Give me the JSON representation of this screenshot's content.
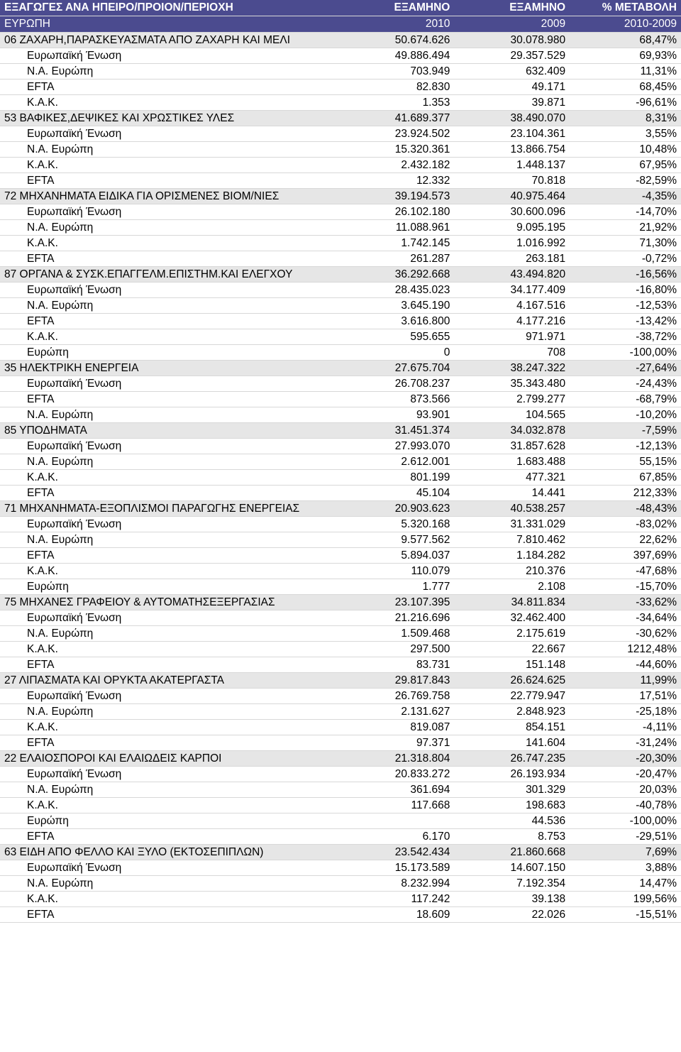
{
  "header": {
    "title_left": "ΕΞΑΓΩΓΕΣ ΑΝΑ ΗΠΕΙΡΟ/ΠΡΟΙΟΝ/ΠΕΡΙΟΧΗ",
    "col1": "ΕΞΑΜΗΝΟ",
    "col2": "ΕΞΑΜΗΝΟ",
    "col3": "% ΜΕΤΑΒΟΛΗ",
    "sub_left": "ΕΥΡΩΠΗ",
    "sub_col1": "2010",
    "sub_col2": "2009",
    "sub_col3": "2010-2009"
  },
  "rows": [
    {
      "type": "cat",
      "label": "06  ΖΑΧΑΡΗ,ΠΑΡΑΣΚΕΥΑΣΜΑΤΑ ΑΠΟ ΖΑΧΑΡΗ ΚΑΙ ΜΕΛΙ",
      "v1": "50.674.626",
      "v2": "30.078.980",
      "pct": "68,47%"
    },
    {
      "type": "sub",
      "label": "Ευρωπαϊκή Ένωση",
      "v1": "49.886.494",
      "v2": "29.357.529",
      "pct": "69,93%"
    },
    {
      "type": "sub",
      "label": "Ν.Α. Ευρώπη",
      "v1": "703.949",
      "v2": "632.409",
      "pct": "11,31%"
    },
    {
      "type": "sub",
      "label": "EFTA",
      "v1": "82.830",
      "v2": "49.171",
      "pct": "68,45%"
    },
    {
      "type": "sub",
      "label": "Κ.Α.Κ.",
      "v1": "1.353",
      "v2": "39.871",
      "pct": "-96,61%"
    },
    {
      "type": "cat",
      "label": "53  ΒΑΦΙΚΕΣ,ΔΕΨΙΚΕΣ ΚΑΙ ΧΡΩΣΤΙΚΕΣ ΥΛΕΣ",
      "v1": "41.689.377",
      "v2": "38.490.070",
      "pct": "8,31%"
    },
    {
      "type": "sub",
      "label": "Ευρωπαϊκή Ένωση",
      "v1": "23.924.502",
      "v2": "23.104.361",
      "pct": "3,55%"
    },
    {
      "type": "sub",
      "label": "Ν.Α. Ευρώπη",
      "v1": "15.320.361",
      "v2": "13.866.754",
      "pct": "10,48%"
    },
    {
      "type": "sub",
      "label": "Κ.Α.Κ.",
      "v1": "2.432.182",
      "v2": "1.448.137",
      "pct": "67,95%"
    },
    {
      "type": "sub",
      "label": "EFTA",
      "v1": "12.332",
      "v2": "70.818",
      "pct": "-82,59%"
    },
    {
      "type": "cat",
      "label": "72  ΜΗΧΑΝΗΜΑΤΑ ΕΙΔΙΚΑ ΓΙΑ ΟΡΙΣΜΕΝΕΣ ΒΙΟΜ/ΝΙΕΣ",
      "v1": "39.194.573",
      "v2": "40.975.464",
      "pct": "-4,35%"
    },
    {
      "type": "sub",
      "label": "Ευρωπαϊκή Ένωση",
      "v1": "26.102.180",
      "v2": "30.600.096",
      "pct": "-14,70%"
    },
    {
      "type": "sub",
      "label": "Ν.Α. Ευρώπη",
      "v1": "11.088.961",
      "v2": "9.095.195",
      "pct": "21,92%"
    },
    {
      "type": "sub",
      "label": "Κ.Α.Κ.",
      "v1": "1.742.145",
      "v2": "1.016.992",
      "pct": "71,30%"
    },
    {
      "type": "sub",
      "label": "EFTA",
      "v1": "261.287",
      "v2": "263.181",
      "pct": "-0,72%"
    },
    {
      "type": "cat",
      "label": "87  ΟΡΓΑΝΑ & ΣΥΣΚ.ΕΠΑΓΓΕΛΜ.ΕΠΙΣΤΗΜ.ΚΑΙ ΕΛΕΓΧΟΥ",
      "v1": "36.292.668",
      "v2": "43.494.820",
      "pct": "-16,56%"
    },
    {
      "type": "sub",
      "label": "Ευρωπαϊκή Ένωση",
      "v1": "28.435.023",
      "v2": "34.177.409",
      "pct": "-16,80%"
    },
    {
      "type": "sub",
      "label": "Ν.Α. Ευρώπη",
      "v1": "3.645.190",
      "v2": "4.167.516",
      "pct": "-12,53%"
    },
    {
      "type": "sub",
      "label": "EFTA",
      "v1": "3.616.800",
      "v2": "4.177.216",
      "pct": "-13,42%"
    },
    {
      "type": "sub",
      "label": "Κ.Α.Κ.",
      "v1": "595.655",
      "v2": "971.971",
      "pct": "-38,72%"
    },
    {
      "type": "sub",
      "label": "Ευρώπη",
      "v1": "0",
      "v2": "708",
      "pct": "-100,00%"
    },
    {
      "type": "cat",
      "label": "35  ΗΛΕΚΤΡΙΚΗ ΕΝΕΡΓΕΙΑ",
      "v1": "27.675.704",
      "v2": "38.247.322",
      "pct": "-27,64%"
    },
    {
      "type": "sub",
      "label": "Ευρωπαϊκή Ένωση",
      "v1": "26.708.237",
      "v2": "35.343.480",
      "pct": "-24,43%"
    },
    {
      "type": "sub",
      "label": "EFTA",
      "v1": "873.566",
      "v2": "2.799.277",
      "pct": "-68,79%"
    },
    {
      "type": "sub",
      "label": "Ν.Α. Ευρώπη",
      "v1": "93.901",
      "v2": "104.565",
      "pct": "-10,20%"
    },
    {
      "type": "cat",
      "label": "85  ΥΠΟΔΗΜΑΤΑ",
      "v1": "31.451.374",
      "v2": "34.032.878",
      "pct": "-7,59%"
    },
    {
      "type": "sub",
      "label": "Ευρωπαϊκή Ένωση",
      "v1": "27.993.070",
      "v2": "31.857.628",
      "pct": "-12,13%"
    },
    {
      "type": "sub",
      "label": "Ν.Α. Ευρώπη",
      "v1": "2.612.001",
      "v2": "1.683.488",
      "pct": "55,15%"
    },
    {
      "type": "sub",
      "label": "Κ.Α.Κ.",
      "v1": "801.199",
      "v2": "477.321",
      "pct": "67,85%"
    },
    {
      "type": "sub",
      "label": "EFTA",
      "v1": "45.104",
      "v2": "14.441",
      "pct": "212,33%"
    },
    {
      "type": "cat",
      "label": "71  ΜΗΧΑΝΗΜΑΤΑ-ΕΞΟΠΛΙΣΜΟΙ ΠΑΡΑΓΩΓΗΣ ΕΝΕΡΓΕΙΑΣ",
      "v1": "20.903.623",
      "v2": "40.538.257",
      "pct": "-48,43%"
    },
    {
      "type": "sub",
      "label": "Ευρωπαϊκή Ένωση",
      "v1": "5.320.168",
      "v2": "31.331.029",
      "pct": "-83,02%"
    },
    {
      "type": "sub",
      "label": "Ν.Α. Ευρώπη",
      "v1": "9.577.562",
      "v2": "7.810.462",
      "pct": "22,62%"
    },
    {
      "type": "sub",
      "label": "EFTA",
      "v1": "5.894.037",
      "v2": "1.184.282",
      "pct": "397,69%"
    },
    {
      "type": "sub",
      "label": "Κ.Α.Κ.",
      "v1": "110.079",
      "v2": "210.376",
      "pct": "-47,68%"
    },
    {
      "type": "sub",
      "label": "Ευρώπη",
      "v1": "1.777",
      "v2": "2.108",
      "pct": "-15,70%"
    },
    {
      "type": "cat",
      "label": "75  ΜΗΧΑΝΕΣ ΓΡΑΦΕΙΟΥ & ΑΥΤΟΜΑΤΗΣΕΞΕΡΓΑΣΙΑΣ",
      "v1": "23.107.395",
      "v2": "34.811.834",
      "pct": "-33,62%"
    },
    {
      "type": "sub",
      "label": "Ευρωπαϊκή Ένωση",
      "v1": "21.216.696",
      "v2": "32.462.400",
      "pct": "-34,64%"
    },
    {
      "type": "sub",
      "label": "Ν.Α. Ευρώπη",
      "v1": "1.509.468",
      "v2": "2.175.619",
      "pct": "-30,62%"
    },
    {
      "type": "sub",
      "label": "Κ.Α.Κ.",
      "v1": "297.500",
      "v2": "22.667",
      "pct": "1212,48%"
    },
    {
      "type": "sub",
      "label": "EFTA",
      "v1": "83.731",
      "v2": "151.148",
      "pct": "-44,60%"
    },
    {
      "type": "cat",
      "label": "27  ΛΙΠΑΣΜΑΤΑ ΚΑΙ ΟΡΥΚΤΑ ΑΚΑΤΕΡΓΑΣΤΑ",
      "v1": "29.817.843",
      "v2": "26.624.625",
      "pct": "11,99%"
    },
    {
      "type": "sub",
      "label": "Ευρωπαϊκή Ένωση",
      "v1": "26.769.758",
      "v2": "22.779.947",
      "pct": "17,51%"
    },
    {
      "type": "sub",
      "label": "Ν.Α. Ευρώπη",
      "v1": "2.131.627",
      "v2": "2.848.923",
      "pct": "-25,18%"
    },
    {
      "type": "sub",
      "label": "Κ.Α.Κ.",
      "v1": "819.087",
      "v2": "854.151",
      "pct": "-4,11%"
    },
    {
      "type": "sub",
      "label": "EFTA",
      "v1": "97.371",
      "v2": "141.604",
      "pct": "-31,24%"
    },
    {
      "type": "cat",
      "label": "22  ΕΛΑΙΟΣΠΟΡΟΙ ΚΑΙ ΕΛΑΙΩΔΕΙΣ ΚΑΡΠΟΙ",
      "v1": "21.318.804",
      "v2": "26.747.235",
      "pct": "-20,30%"
    },
    {
      "type": "sub",
      "label": "Ευρωπαϊκή Ένωση",
      "v1": "20.833.272",
      "v2": "26.193.934",
      "pct": "-20,47%"
    },
    {
      "type": "sub",
      "label": "Ν.Α. Ευρώπη",
      "v1": "361.694",
      "v2": "301.329",
      "pct": "20,03%"
    },
    {
      "type": "sub",
      "label": "Κ.Α.Κ.",
      "v1": "117.668",
      "v2": "198.683",
      "pct": "-40,78%"
    },
    {
      "type": "sub",
      "label": "Ευρώπη",
      "v1": "",
      "v2": "44.536",
      "pct": "-100,00%"
    },
    {
      "type": "sub",
      "label": "EFTA",
      "v1": "6.170",
      "v2": "8.753",
      "pct": "-29,51%"
    },
    {
      "type": "cat",
      "label": "63  ΕΙΔΗ ΑΠΟ ΦΕΛΛΟ ΚΑΙ ΞΥΛΟ (ΕΚΤΟΣΕΠΙΠΛΩΝ)",
      "v1": "23.542.434",
      "v2": "21.860.668",
      "pct": "7,69%"
    },
    {
      "type": "sub",
      "label": "Ευρωπαϊκή Ένωση",
      "v1": "15.173.589",
      "v2": "14.607.150",
      "pct": "3,88%"
    },
    {
      "type": "sub",
      "label": "Ν.Α. Ευρώπη",
      "v1": "8.232.994",
      "v2": "7.192.354",
      "pct": "14,47%"
    },
    {
      "type": "sub",
      "label": "Κ.Α.Κ.",
      "v1": "117.242",
      "v2": "39.138",
      "pct": "199,56%"
    },
    {
      "type": "sub",
      "label": "EFTA",
      "v1": "18.609",
      "v2": "22.026",
      "pct": "-15,51%"
    }
  ]
}
